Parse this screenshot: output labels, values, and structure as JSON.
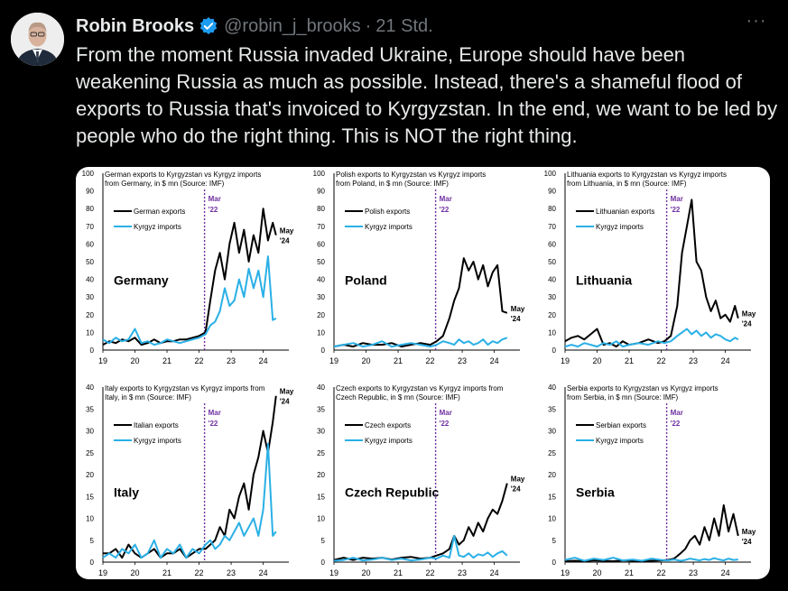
{
  "tweet": {
    "author_name": "Robin Brooks",
    "handle": "@robin_j_brooks",
    "separator": "·",
    "time": "21 Std.",
    "more_label": "···",
    "text": "From the moment Russia invaded Ukraine, Europe should have been weakening Russia as much as possible. Instead, there's a shameful flood of exports to Russia that's invoiced to Kyrgyzstan. In the end, we want to be led by people who do the right thing. This is NOT the right thing."
  },
  "icons": {
    "avatar": "profile-photo",
    "verified": "verified-badge-icon",
    "more": "more-options-icon"
  },
  "colors": {
    "verified": "#1d9bf0",
    "exports_line": "#000000",
    "imports_line": "#2ab0e6",
    "marker_line": "#7030a0"
  },
  "chart_data": [
    {
      "type": "line",
      "title": "German exports to Kyrgyzstan vs Kyrgyz imports from Germany, in $ mn (Source: IMF)",
      "country_label": "Germany",
      "marker_label": [
        "Mar",
        "'22"
      ],
      "end_label": [
        "May",
        "'24"
      ],
      "x_ticks": [
        "19",
        "20",
        "21",
        "22",
        "23",
        "24"
      ],
      "y_ticks": [
        0,
        10,
        20,
        30,
        40,
        50,
        60,
        70,
        80,
        90,
        100
      ],
      "ylim": [
        0,
        100
      ],
      "xlim": [
        2019,
        2024.8
      ],
      "marker_x": 2022.17,
      "series": [
        {
          "name": "German exports",
          "x": [
            2019,
            2019.2,
            2019.4,
            2019.6,
            2019.8,
            2020,
            2020.2,
            2020.4,
            2020.6,
            2020.8,
            2021,
            2021.2,
            2021.4,
            2021.6,
            2021.8,
            2022,
            2022.2,
            2022.35,
            2022.5,
            2022.65,
            2022.8,
            2022.95,
            2023.1,
            2023.25,
            2023.4,
            2023.55,
            2023.7,
            2023.85,
            2024,
            2024.15,
            2024.3,
            2024.4
          ],
          "y": [
            3,
            5,
            4,
            6,
            5,
            7,
            3,
            4,
            6,
            4,
            5,
            5,
            6,
            6,
            7,
            8,
            10,
            28,
            45,
            55,
            40,
            60,
            72,
            55,
            68,
            50,
            65,
            55,
            80,
            62,
            72,
            65
          ]
        },
        {
          "name": "Kyrgyz imports",
          "x": [
            2019,
            2019.2,
            2019.4,
            2019.6,
            2019.8,
            2020,
            2020.2,
            2020.4,
            2020.6,
            2020.8,
            2021,
            2021.2,
            2021.4,
            2021.6,
            2021.8,
            2022,
            2022.2,
            2022.35,
            2022.5,
            2022.65,
            2022.8,
            2022.95,
            2023.1,
            2023.25,
            2023.4,
            2023.55,
            2023.7,
            2023.85,
            2024,
            2024.15,
            2024.3,
            2024.4
          ],
          "y": [
            6,
            4,
            7,
            5,
            6,
            12,
            4,
            5,
            3,
            4,
            6,
            5,
            4,
            5,
            6,
            7,
            9,
            14,
            16,
            22,
            35,
            25,
            28,
            40,
            30,
            46,
            35,
            45,
            30,
            53,
            17,
            18
          ]
        }
      ]
    },
    {
      "type": "line",
      "title": "Polish exports to Kyrgyzstan vs Kyrgyz imports from Poland, in $ mn (Source: IMF)",
      "country_label": "Poland",
      "marker_label": [
        "Mar",
        "'22"
      ],
      "end_label": [
        "May",
        "'24"
      ],
      "x_ticks": [
        "19",
        "20",
        "21",
        "22",
        "23",
        "24"
      ],
      "y_ticks": [
        0,
        10,
        20,
        30,
        40,
        50,
        60,
        70,
        80,
        90,
        100
      ],
      "ylim": [
        0,
        100
      ],
      "xlim": [
        2019,
        2024.8
      ],
      "marker_x": 2022.17,
      "series": [
        {
          "name": "Polish exports",
          "x": [
            2019,
            2019.3,
            2019.6,
            2019.9,
            2020.2,
            2020.5,
            2020.8,
            2021.1,
            2021.4,
            2021.7,
            2022,
            2022.2,
            2022.4,
            2022.6,
            2022.75,
            2022.9,
            2023.05,
            2023.2,
            2023.35,
            2023.5,
            2023.65,
            2023.8,
            2023.95,
            2024.1,
            2024.25,
            2024.4
          ],
          "y": [
            2,
            3,
            2,
            4,
            3,
            3,
            4,
            2,
            3,
            4,
            3,
            5,
            8,
            18,
            28,
            35,
            52,
            45,
            50,
            40,
            48,
            36,
            44,
            48,
            22,
            21
          ]
        },
        {
          "name": "Kyrgyz imports",
          "x": [
            2019,
            2019.3,
            2019.6,
            2019.9,
            2020.2,
            2020.5,
            2020.8,
            2021.1,
            2021.4,
            2021.7,
            2022,
            2022.2,
            2022.4,
            2022.6,
            2022.75,
            2022.9,
            2023.05,
            2023.2,
            2023.35,
            2023.5,
            2023.65,
            2023.8,
            2023.95,
            2024.1,
            2024.25,
            2024.4
          ],
          "y": [
            2,
            3,
            4,
            2,
            3,
            5,
            2,
            3,
            4,
            3,
            2,
            3,
            5,
            4,
            3,
            6,
            4,
            5,
            3,
            4,
            6,
            3,
            5,
            4,
            6,
            7
          ]
        }
      ]
    },
    {
      "type": "line",
      "title": "Lithuania exports to Kyrgyzstan vs Kyrgyz imports from Lithuania, in $ mn (Source: IMF)",
      "country_label": "Lithuania",
      "marker_label": [
        "Mar",
        "'22"
      ],
      "end_label": [
        "May",
        "'24"
      ],
      "x_ticks": [
        "19",
        "20",
        "21",
        "22",
        "23",
        "24"
      ],
      "y_ticks": [
        0,
        10,
        20,
        30,
        40,
        50,
        60,
        70,
        80,
        90,
        100
      ],
      "ylim": [
        0,
        100
      ],
      "xlim": [
        2019,
        2024.8
      ],
      "marker_x": 2022.17,
      "series": [
        {
          "name": "Lithuanian exports",
          "x": [
            2019,
            2019.2,
            2019.4,
            2019.6,
            2019.8,
            2020,
            2020.2,
            2020.4,
            2020.6,
            2020.8,
            2021,
            2021.3,
            2021.6,
            2021.9,
            2022.1,
            2022.3,
            2022.5,
            2022.65,
            2022.8,
            2022.95,
            2023.1,
            2023.25,
            2023.4,
            2023.55,
            2023.7,
            2023.85,
            2024,
            2024.15,
            2024.3,
            2024.4
          ],
          "y": [
            5,
            7,
            8,
            6,
            9,
            12,
            3,
            4,
            2,
            5,
            3,
            4,
            6,
            4,
            5,
            8,
            25,
            55,
            70,
            85,
            50,
            45,
            30,
            22,
            28,
            18,
            20,
            16,
            25,
            18
          ]
        },
        {
          "name": "Kyrgyz imports",
          "x": [
            2019,
            2019.2,
            2019.4,
            2019.6,
            2019.8,
            2020,
            2020.2,
            2020.4,
            2020.6,
            2020.8,
            2021,
            2021.3,
            2021.6,
            2021.9,
            2022.1,
            2022.3,
            2022.5,
            2022.65,
            2022.8,
            2022.95,
            2023.1,
            2023.25,
            2023.4,
            2023.55,
            2023.7,
            2023.85,
            2024,
            2024.15,
            2024.3,
            2024.4
          ],
          "y": [
            2,
            3,
            2,
            4,
            3,
            2,
            4,
            3,
            5,
            2,
            3,
            4,
            3,
            5,
            4,
            5,
            8,
            10,
            12,
            9,
            11,
            8,
            10,
            7,
            9,
            8,
            6,
            5,
            7,
            6
          ]
        }
      ]
    },
    {
      "type": "line",
      "title": "Italy exports to Kyrgyzstan vs Kyrgyz imports from Italy, in $ mn (Source: IMF)",
      "country_label": "Italy",
      "marker_label": [
        "Mar",
        "'22"
      ],
      "end_label": [
        "May",
        "'24"
      ],
      "x_ticks": [
        "19",
        "20",
        "21",
        "22",
        "23",
        "24"
      ],
      "y_ticks": [
        0,
        5,
        10,
        15,
        20,
        25,
        30,
        35,
        40
      ],
      "ylim": [
        0,
        40
      ],
      "xlim": [
        2019,
        2024.8
      ],
      "marker_x": 2022.17,
      "series": [
        {
          "name": "Italian exports",
          "x": [
            2019,
            2019.2,
            2019.4,
            2019.6,
            2019.8,
            2020,
            2020.2,
            2020.4,
            2020.6,
            2020.8,
            2021,
            2021.2,
            2021.4,
            2021.6,
            2021.8,
            2022,
            2022.2,
            2022.35,
            2022.5,
            2022.65,
            2022.8,
            2022.95,
            2023.1,
            2023.25,
            2023.4,
            2023.55,
            2023.7,
            2023.85,
            2024,
            2024.15,
            2024.3,
            2024.4
          ],
          "y": [
            2,
            2,
            3,
            1,
            4,
            2,
            1,
            2,
            3,
            1,
            2,
            2,
            3,
            1,
            2,
            3,
            3,
            4,
            5,
            8,
            6,
            12,
            10,
            15,
            18,
            12,
            20,
            24,
            30,
            25,
            32,
            38
          ]
        },
        {
          "name": "Kyrgyz imports",
          "x": [
            2019,
            2019.2,
            2019.4,
            2019.6,
            2019.8,
            2020,
            2020.2,
            2020.4,
            2020.6,
            2020.8,
            2021,
            2021.2,
            2021.4,
            2021.6,
            2021.8,
            2022,
            2022.2,
            2022.35,
            2022.5,
            2022.65,
            2022.8,
            2022.95,
            2023.1,
            2023.25,
            2023.4,
            2023.55,
            2023.7,
            2023.85,
            2024,
            2024.15,
            2024.3,
            2024.4
          ],
          "y": [
            1,
            2,
            1,
            3,
            2,
            4,
            1,
            2,
            5,
            1,
            3,
            2,
            4,
            1,
            3,
            2,
            4,
            5,
            3,
            4,
            6,
            5,
            7,
            9,
            6,
            8,
            10,
            6,
            12,
            27,
            6,
            7
          ]
        }
      ]
    },
    {
      "type": "line",
      "title": "Czech exports to Kyrgyzstan vs Kyrgyz imports from Czech Republic, in $ mn (Source: IMF)",
      "country_label": "Czech Republic",
      "marker_label": [
        "Mar",
        "'22"
      ],
      "end_label": [
        "May",
        "'24"
      ],
      "x_ticks": [
        "19",
        "20",
        "21",
        "22",
        "23",
        "24"
      ],
      "y_ticks": [
        0,
        5,
        10,
        15,
        20,
        25,
        30,
        35,
        40
      ],
      "ylim": [
        0,
        40
      ],
      "xlim": [
        2019,
        2024.8
      ],
      "marker_x": 2022.17,
      "series": [
        {
          "name": "Czech exports",
          "x": [
            2019,
            2019.3,
            2019.6,
            2019.9,
            2020.2,
            2020.5,
            2020.8,
            2021.1,
            2021.4,
            2021.7,
            2022,
            2022.2,
            2022.4,
            2022.6,
            2022.75,
            2022.9,
            2023.05,
            2023.2,
            2023.35,
            2023.5,
            2023.65,
            2023.8,
            2023.95,
            2024.1,
            2024.25,
            2024.4
          ],
          "y": [
            0.5,
            1,
            0.5,
            1,
            0.8,
            1,
            0.6,
            1,
            1.2,
            0.8,
            1,
            1.5,
            2,
            3,
            6,
            4,
            5,
            8,
            6,
            9,
            7,
            10,
            12,
            11,
            14,
            18
          ]
        },
        {
          "name": "Kyrgyz imports",
          "x": [
            2019,
            2019.3,
            2019.6,
            2019.9,
            2020.2,
            2020.5,
            2020.8,
            2021.1,
            2021.4,
            2021.7,
            2022,
            2022.2,
            2022.4,
            2022.6,
            2022.75,
            2022.9,
            2023.05,
            2023.2,
            2023.35,
            2023.5,
            2023.65,
            2023.8,
            2023.95,
            2024.1,
            2024.25,
            2024.4
          ],
          "y": [
            0.3,
            0.5,
            1,
            0.4,
            0.6,
            1,
            0.5,
            0.8,
            0.4,
            0.6,
            1,
            0.8,
            1.5,
            1,
            6,
            1.5,
            1.2,
            2,
            1,
            1.8,
            1.5,
            2.2,
            1.2,
            2,
            2.5,
            1.5
          ]
        }
      ]
    },
    {
      "type": "line",
      "title": "Serbia exports to Kyrgyzstan vs Kyrgyz imports from Serbia, in $ mn (Source: IMF)",
      "country_label": "Serbia",
      "marker_label": [
        "Mar",
        "'22"
      ],
      "end_label": [
        "May",
        "'24"
      ],
      "x_ticks": [
        "19",
        "20",
        "21",
        "22",
        "23",
        "24"
      ],
      "y_ticks": [
        0,
        5,
        10,
        15,
        20,
        25,
        30,
        35,
        40
      ],
      "ylim": [
        0,
        40
      ],
      "xlim": [
        2019,
        2024.8
      ],
      "marker_x": 2022.17,
      "series": [
        {
          "name": "Serbian exports",
          "x": [
            2019,
            2019.3,
            2019.6,
            2019.9,
            2020.2,
            2020.5,
            2020.8,
            2021.1,
            2021.4,
            2021.7,
            2022,
            2022.2,
            2022.4,
            2022.6,
            2022.75,
            2022.9,
            2023.05,
            2023.2,
            2023.35,
            2023.5,
            2023.65,
            2023.8,
            2023.95,
            2024.1,
            2024.25,
            2024.4
          ],
          "y": [
            0.2,
            0.3,
            0.2,
            0.4,
            0.3,
            0.2,
            0.4,
            0.3,
            0.2,
            0.3,
            0.4,
            0.5,
            0.8,
            2,
            3,
            5,
            6,
            4,
            8,
            5,
            10,
            6,
            13,
            7,
            11,
            6
          ]
        },
        {
          "name": "Kyrgyz imports",
          "x": [
            2019,
            2019.3,
            2019.6,
            2019.9,
            2020.2,
            2020.5,
            2020.8,
            2021.1,
            2021.4,
            2021.7,
            2022,
            2022.2,
            2022.4,
            2022.6,
            2022.75,
            2022.9,
            2023.05,
            2023.2,
            2023.35,
            2023.5,
            2023.65,
            2023.8,
            2023.95,
            2024.1,
            2024.25,
            2024.4
          ],
          "y": [
            0.5,
            1,
            0.3,
            0.8,
            0.5,
            1,
            0.4,
            0.6,
            0.3,
            0.8,
            0.5,
            0.4,
            0.6,
            0.3,
            0.5,
            0.8,
            0.6,
            0.4,
            0.7,
            0.5,
            0.9,
            0.6,
            0.4,
            0.8,
            0.5,
            0.6
          ]
        }
      ]
    }
  ]
}
